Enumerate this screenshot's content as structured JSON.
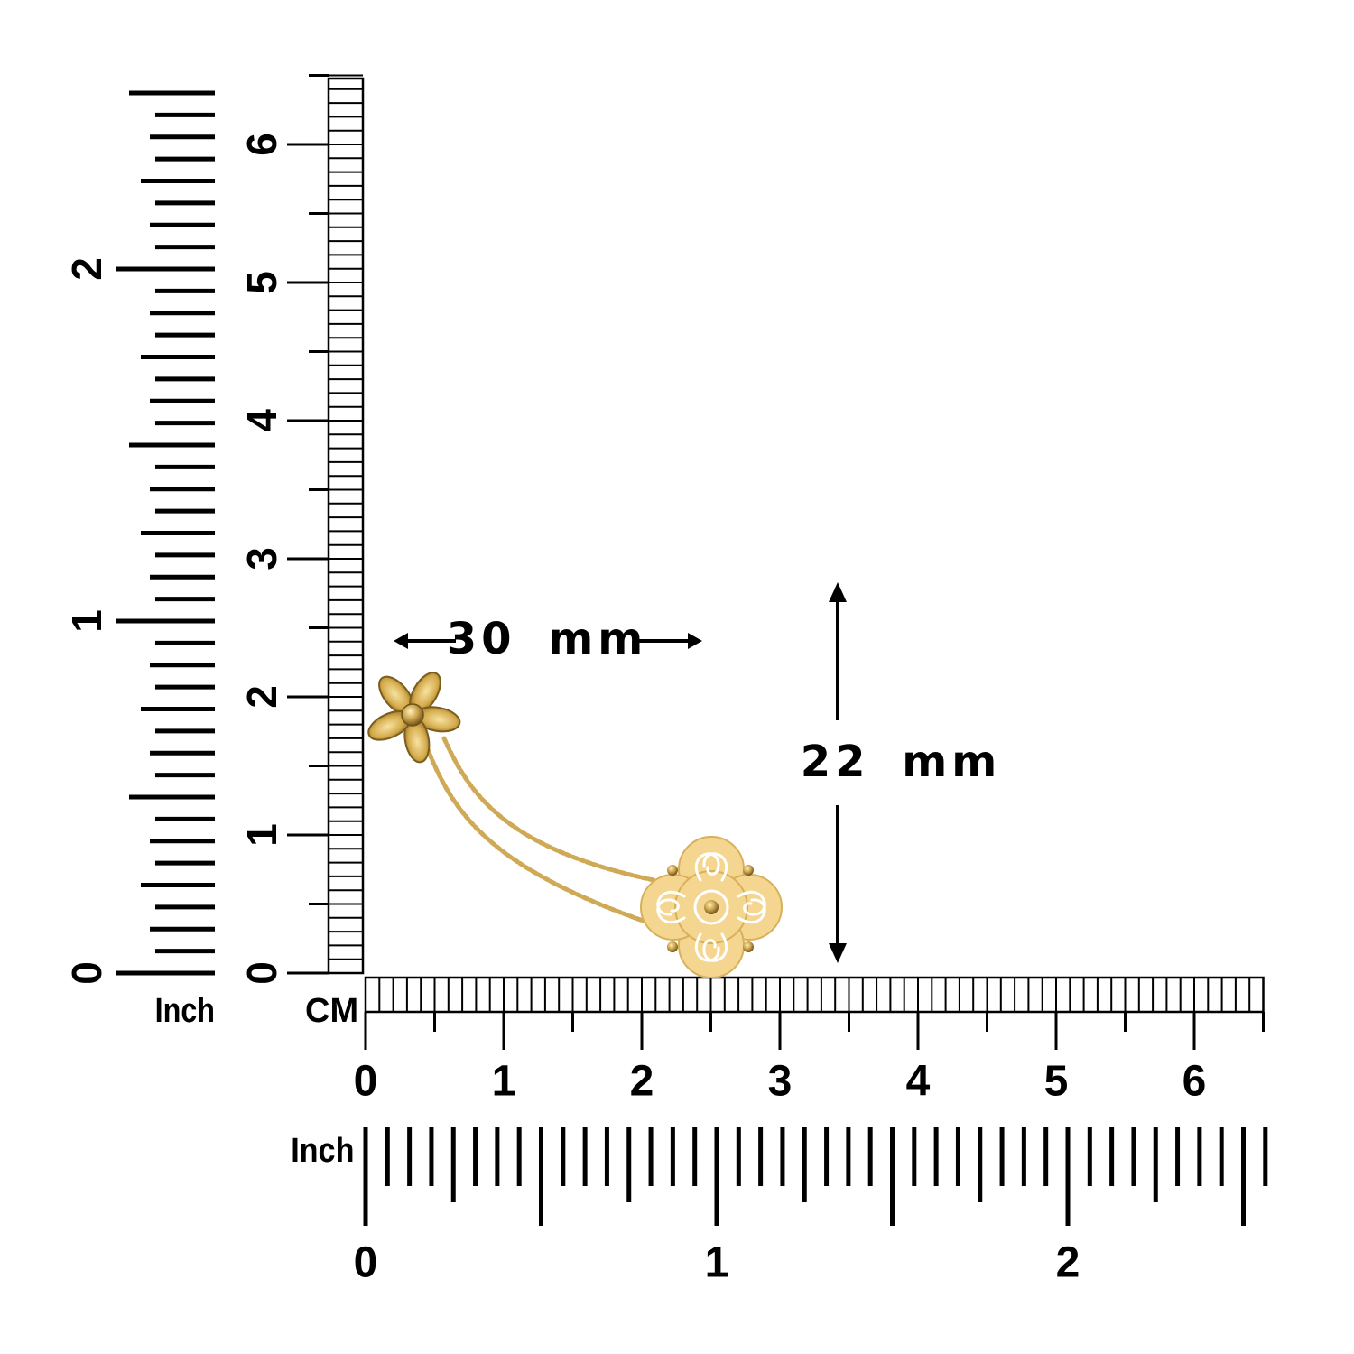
{
  "unit_labels": {
    "inch_left": "Inch",
    "cm_bottom": "CM",
    "inch_bottom": "Inch"
  },
  "rulers": {
    "left_inch": {
      "labels": [
        "0",
        "1",
        "2"
      ],
      "max": 2.5,
      "subdivisions": 16
    },
    "left_cm": {
      "labels": [
        "0",
        "1",
        "2",
        "3",
        "4",
        "5",
        "6"
      ],
      "max": 6.5
    },
    "bottom_cm": {
      "labels": [
        "0",
        "1",
        "2",
        "3",
        "4",
        "5",
        "6"
      ],
      "max": 6.5
    },
    "bottom_inch": {
      "labels": [
        "0",
        "1",
        "2"
      ],
      "max": 2.57,
      "subdivisions": 16
    }
  },
  "dimensions": {
    "width": {
      "value": "30",
      "unit": "mm"
    },
    "height": {
      "value": "22",
      "unit": "mm"
    }
  },
  "colors": {
    "ink": "#000000",
    "gold": "#d9b35a",
    "gold_dark": "#a88531",
    "gold_light": "#f3dfa3",
    "background": "#ffffff"
  },
  "product": {
    "icon_top": "flower-stud-icon",
    "icon_bottom": "filigree-flower-icon",
    "icon_chain": "ball-chain-icon"
  }
}
